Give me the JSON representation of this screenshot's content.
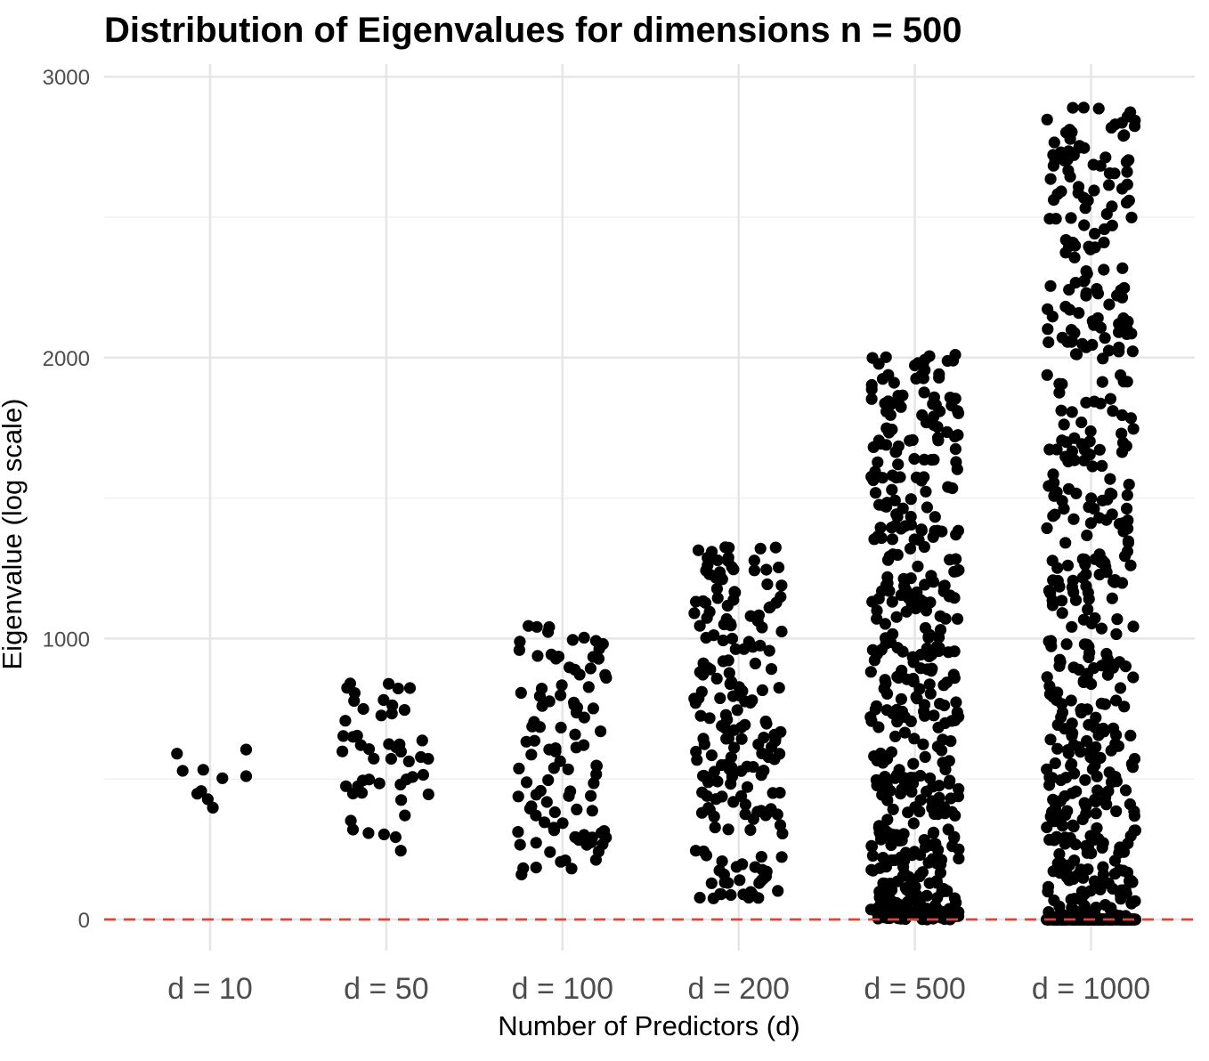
{
  "chart_data": {
    "type": "scatter",
    "title": "Distribution of Eigenvalues for dimensions n = 500",
    "xlabel": "Number of Predictors (d)",
    "ylabel": "Eigenvalue (log scale)",
    "categories": [
      "d = 10",
      "d = 50",
      "d = 100",
      "d = 200",
      "d = 500",
      "d = 1000"
    ],
    "ylim": [
      -100,
      3000
    ],
    "yticks": [
      0,
      1000,
      2000,
      3000
    ],
    "ytick_labels": [
      "0",
      "1000",
      "2000",
      "3000"
    ],
    "grid": true,
    "jitter": true,
    "point_color": "#000000",
    "reference_line": {
      "y": 0,
      "style": "dashed",
      "color": "#e0423a"
    },
    "series": [
      {
        "category": "d = 10",
        "count": 10,
        "ymin": 398,
        "ymax": 605
      },
      {
        "category": "d = 50",
        "count": 50,
        "ymin": 245,
        "ymax": 840
      },
      {
        "category": "d = 100",
        "count": 100,
        "ymin": 160,
        "ymax": 1045
      },
      {
        "category": "d = 200",
        "count": 200,
        "ymin": 75,
        "ymax": 1325
      },
      {
        "category": "d = 500",
        "count": 500,
        "ymin": 0,
        "ymax": 2010
      },
      {
        "category": "d = 1000",
        "count": 1000,
        "ymin": 0,
        "ymax": 2890
      }
    ]
  }
}
